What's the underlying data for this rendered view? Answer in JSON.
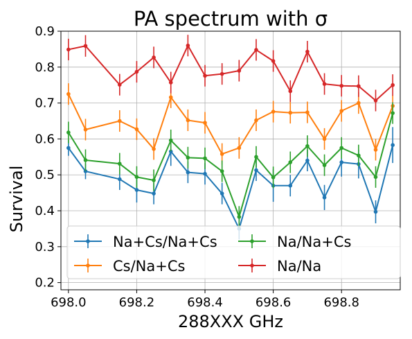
{
  "chart_data": {
    "type": "line",
    "title": "PA spectrum with σ",
    "xlabel": "288XXX GHz",
    "ylabel": "Survival",
    "xlim": [
      697.978,
      698.972
    ],
    "ylim": [
      0.18,
      0.9
    ],
    "x_ticks": [
      698.0,
      698.2,
      698.4,
      698.6,
      698.8
    ],
    "x_tick_labels": [
      "698.0",
      "698.2",
      "698.4",
      "698.6",
      "698.8"
    ],
    "y_ticks": [
      0.2,
      0.3,
      0.4,
      0.5,
      0.6,
      0.7,
      0.8,
      0.9
    ],
    "y_tick_labels": [
      "0.2",
      "0.3",
      "0.4",
      "0.5",
      "0.6",
      "0.7",
      "0.8",
      "0.9"
    ],
    "grid": true,
    "legend_position": "lower-center",
    "x": [
      698.0,
      698.05,
      698.15,
      698.2,
      698.25,
      698.3,
      698.35,
      698.4,
      698.45,
      698.5,
      698.55,
      698.6,
      698.65,
      698.7,
      698.75,
      698.8,
      698.85,
      698.9,
      698.95
    ],
    "series": [
      {
        "name": "Na+Cs/Na+Cs",
        "color": "#1f77b4",
        "values": [
          0.575,
          0.51,
          0.488,
          0.458,
          0.448,
          0.565,
          0.507,
          0.503,
          0.448,
          0.35,
          0.513,
          0.47,
          0.47,
          0.54,
          0.437,
          0.535,
          0.53,
          0.397,
          0.583
        ],
        "errors": [
          0.022,
          0.022,
          0.03,
          0.035,
          0.03,
          0.04,
          0.03,
          0.03,
          0.03,
          0.03,
          0.03,
          0.045,
          0.03,
          0.03,
          0.035,
          0.04,
          0.04,
          0.032,
          0.05
        ]
      },
      {
        "name": "Cs/Na+Cs",
        "color": "#ff7f0e",
        "values": [
          0.725,
          0.626,
          0.65,
          0.627,
          0.572,
          0.716,
          0.652,
          0.645,
          0.558,
          0.575,
          0.652,
          0.676,
          0.673,
          0.674,
          0.6,
          0.678,
          0.7,
          0.57,
          0.692
        ]
      },
      {
        "name": "Na/Na+Cs",
        "color": "#2ca02c",
        "values": [
          0.618,
          0.541,
          0.531,
          0.494,
          0.485,
          0.596,
          0.548,
          0.546,
          0.51,
          0.383,
          0.55,
          0.493,
          0.535,
          0.58,
          0.527,
          0.575,
          0.554,
          0.494,
          0.672
        ]
      },
      {
        "name": "Na/Na",
        "color": "#d62728",
        "values": [
          0.849,
          0.859,
          0.751,
          0.787,
          0.827,
          0.757,
          0.86,
          0.776,
          0.781,
          0.79,
          0.848,
          0.817,
          0.733,
          0.843,
          0.753,
          0.748,
          0.747,
          0.707,
          0.75
        ]
      }
    ],
    "error_size_default": 0.03
  }
}
